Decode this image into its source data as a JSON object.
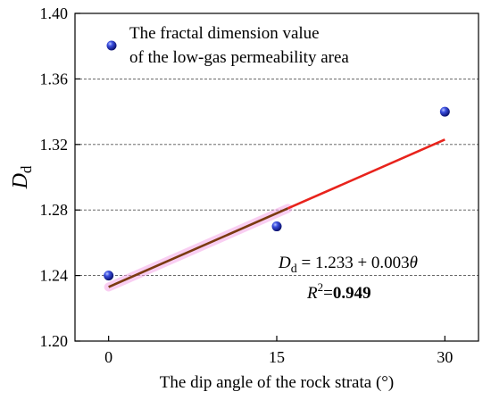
{
  "chart_data": {
    "type": "scatter",
    "xlabel": "The dip angle of the rock strata (°)",
    "ylabel_main": "D",
    "ylabel_sub": "d",
    "xlim": [
      -3,
      33
    ],
    "ylim": [
      1.2,
      1.4
    ],
    "xticks": [
      0,
      15,
      30
    ],
    "xtick_labels": [
      "0",
      "15",
      "30"
    ],
    "yticks": [
      1.2,
      1.24,
      1.28,
      1.32,
      1.36,
      1.4
    ],
    "ytick_labels": [
      "1.20",
      "1.24",
      "1.28",
      "1.32",
      "1.36",
      "1.40"
    ],
    "grid": "horizontal dashed",
    "legend": {
      "placement": "top-left",
      "line1": "The fractal dimension value",
      "line2": "of the low-gas permeability area"
    },
    "series": [
      {
        "name": "The fractal dimension value of the low-gas permeability area",
        "x": [
          0,
          15,
          30
        ],
        "y": [
          1.24,
          1.27,
          1.34
        ],
        "marker": "blue sphere",
        "color": "#1a23a8"
      }
    ],
    "fit": {
      "intercept": 1.233,
      "slope": 0.003,
      "x_range": [
        0,
        30
      ],
      "color": "#e8231c",
      "highlight_color": "#f4a6e8"
    },
    "equation": {
      "lhs_main": "D",
      "lhs_sub": "d",
      "rhs": " = 1.233 + 0.003",
      "var": "θ"
    },
    "r2": {
      "base": "R",
      "sup": "2",
      "eq": "=",
      "value": "0.949"
    }
  }
}
